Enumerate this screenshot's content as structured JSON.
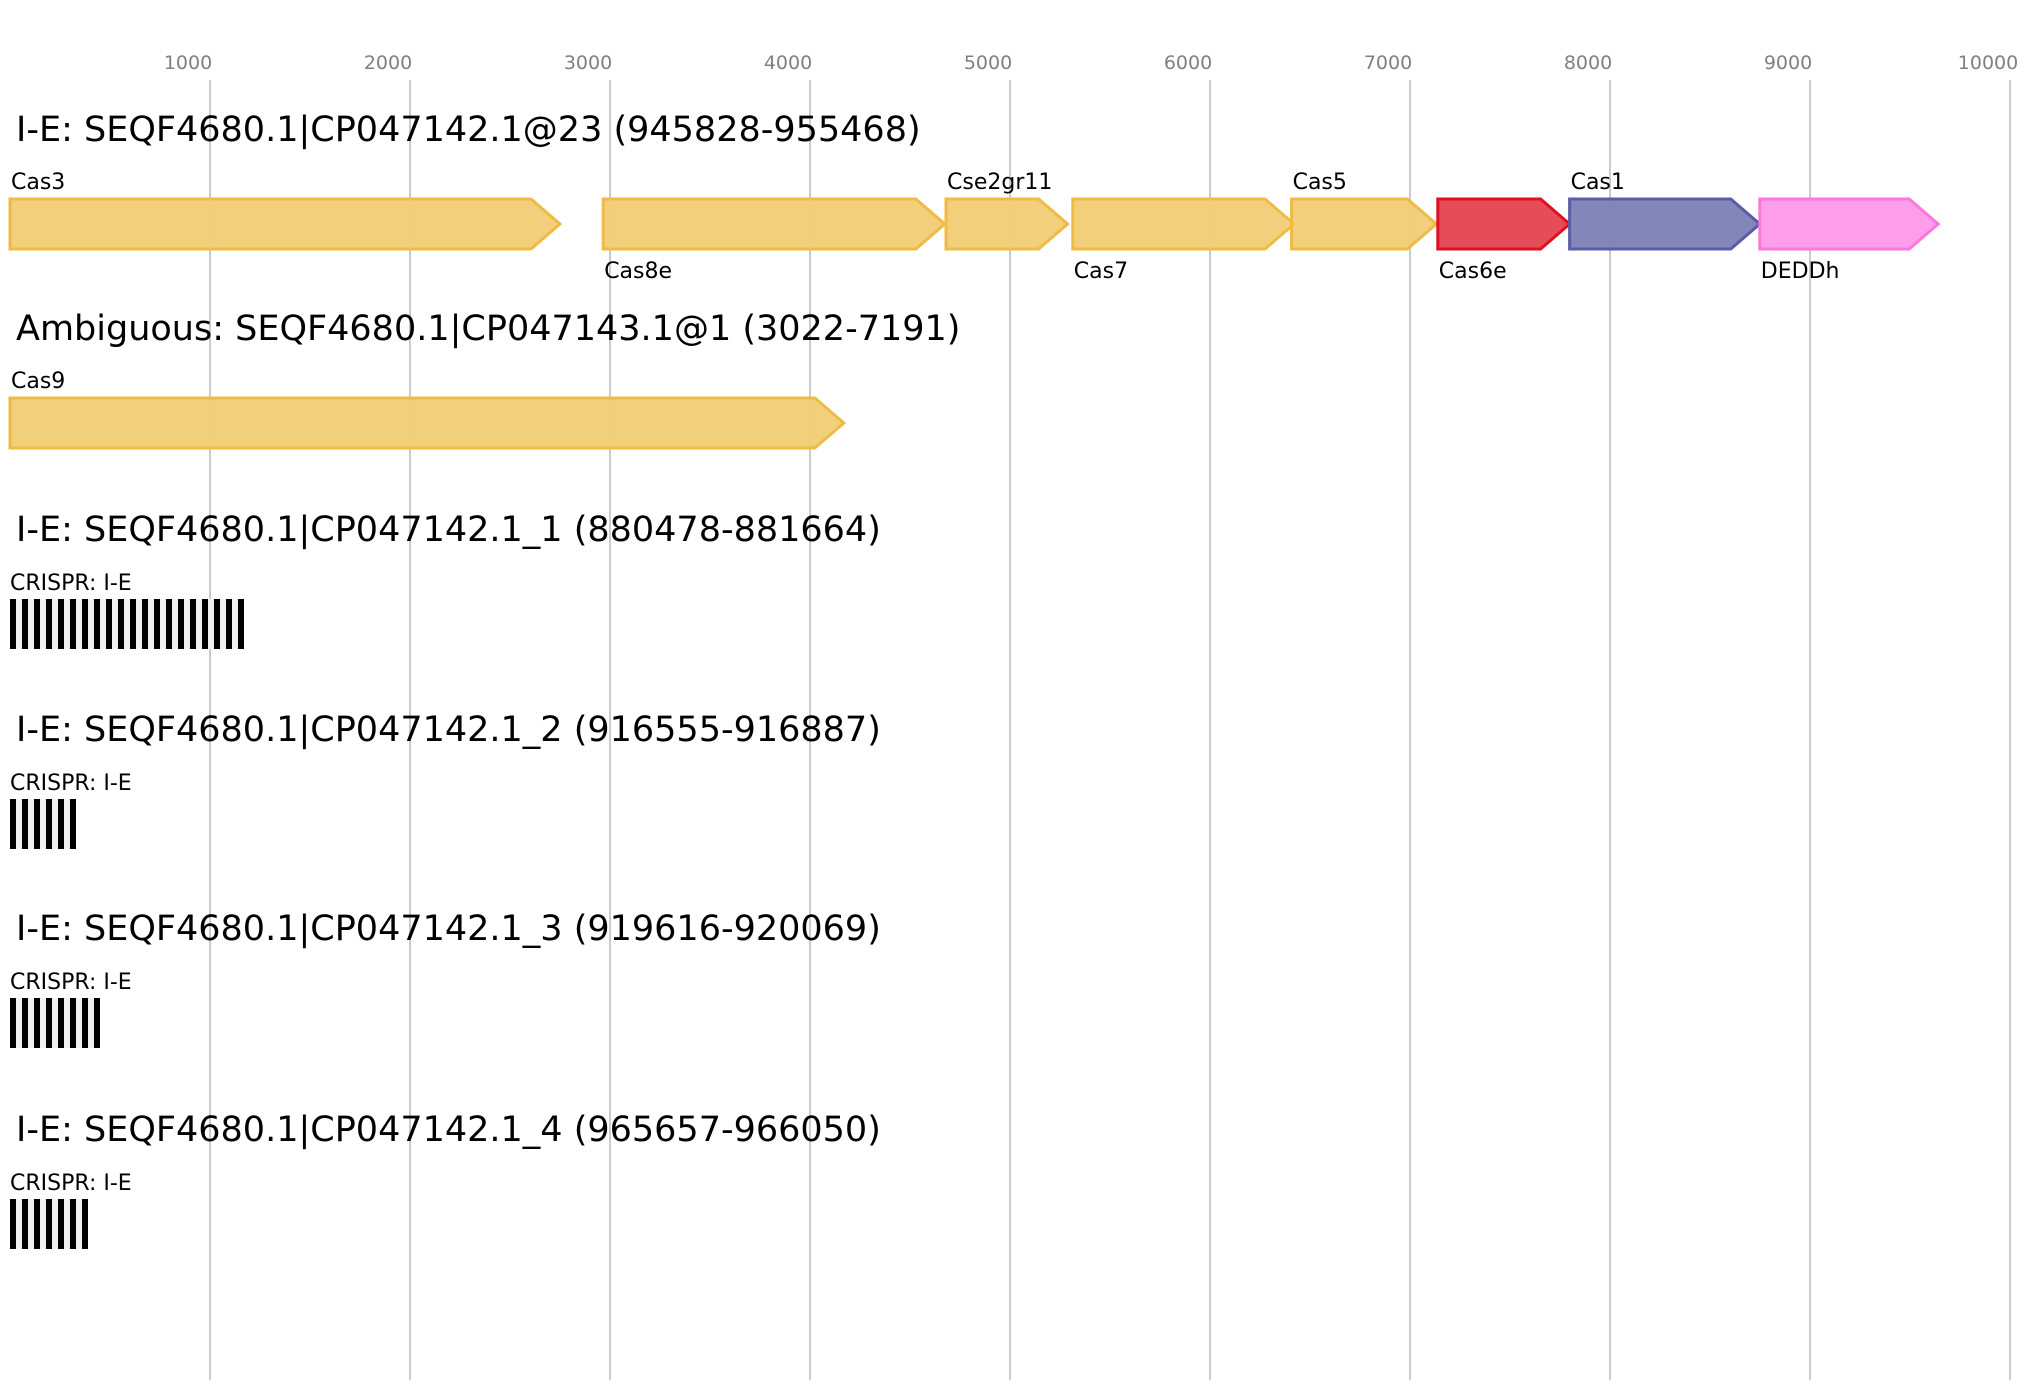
{
  "axis": {
    "ticks": [
      1000,
      2000,
      3000,
      4000,
      5000,
      6000,
      7000,
      8000,
      9000,
      10000
    ],
    "max": 10000
  },
  "colors": {
    "yellow_fill": "#f0cc74",
    "yellow_stroke": "#eebb44",
    "red_fill": "#e5424f",
    "red_stroke": "#dd1122",
    "blue_fill": "#7b7fb5",
    "blue_stroke": "#5a5ea6",
    "pink_fill": "#ff99e9",
    "pink_stroke": "#ff77dd"
  },
  "tracks": [
    {
      "title": "I-E: SEQF4680.1|CP047142.1@23 (945828-955468)",
      "type": "genes",
      "genes": [
        {
          "name": "Cas3",
          "start": 0,
          "end": 2750,
          "color": "yellow",
          "label_pos": "above"
        },
        {
          "name": "Cas8e",
          "start": 2966,
          "end": 4674,
          "color": "yellow",
          "label_pos": "below"
        },
        {
          "name": "Cse2gr11",
          "start": 4680,
          "end": 5288,
          "color": "yellow",
          "label_pos": "above"
        },
        {
          "name": "Cas7",
          "start": 5314,
          "end": 6420,
          "color": "yellow",
          "label_pos": "below"
        },
        {
          "name": "Cas5",
          "start": 6408,
          "end": 7132,
          "color": "yellow",
          "label_pos": "above"
        },
        {
          "name": "Cas6e",
          "start": 7139,
          "end": 7798,
          "color": "red",
          "label_pos": "below"
        },
        {
          "name": "Cas1",
          "start": 7798,
          "end": 8749,
          "color": "blue",
          "label_pos": "above"
        },
        {
          "name": "DEDDh",
          "start": 8749,
          "end": 9641,
          "color": "pink",
          "label_pos": "below"
        }
      ]
    },
    {
      "title": "Ambiguous: SEQF4680.1|CP047143.1@1 (3022-7191)",
      "type": "genes",
      "genes": [
        {
          "name": "Cas9",
          "start": 0,
          "end": 4169,
          "color": "yellow",
          "label_pos": "above"
        }
      ]
    },
    {
      "title": "I-E: SEQF4680.1|CP047142.1_1 (880478-881664)",
      "type": "crispr",
      "label": "CRISPR: I-E",
      "repeats": 20
    },
    {
      "title": "I-E: SEQF4680.1|CP047142.1_2 (916555-916887)",
      "type": "crispr",
      "label": "CRISPR: I-E",
      "repeats": 6
    },
    {
      "title": "I-E: SEQF4680.1|CP047142.1_3 (919616-920069)",
      "type": "crispr",
      "label": "CRISPR: I-E",
      "repeats": 8
    },
    {
      "title": "I-E: SEQF4680.1|CP047142.1_4 (965657-966050)",
      "type": "crispr",
      "label": "CRISPR: I-E",
      "repeats": 7
    }
  ]
}
